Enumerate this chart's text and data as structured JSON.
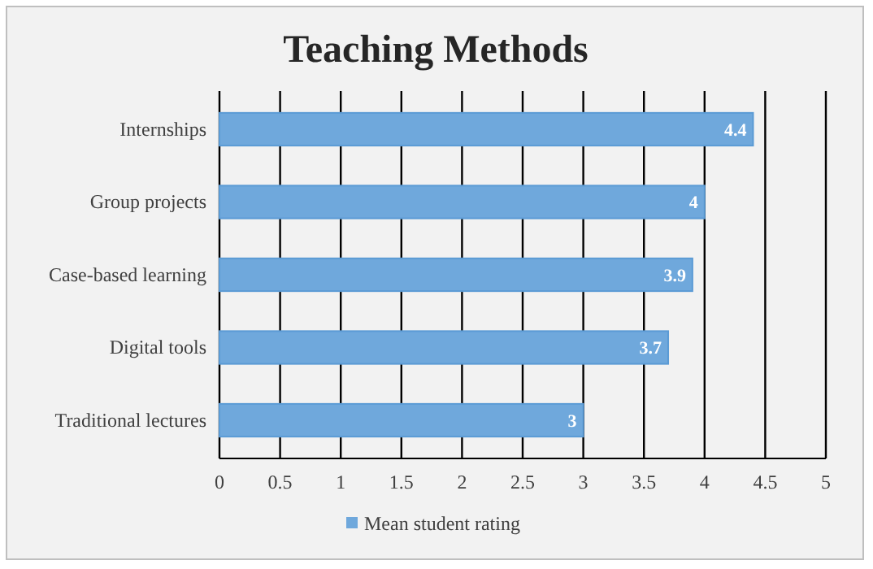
{
  "chart_data": {
    "type": "bar",
    "orientation": "horizontal",
    "title": "Teaching Methods",
    "categories": [
      "Internships",
      "Group projects",
      "Case-based learning",
      "Digital tools",
      "Traditional lectures"
    ],
    "series": [
      {
        "name": "Mean student rating",
        "color": "#6fa8dc",
        "values": [
          4.4,
          4,
          3.9,
          3.7,
          3
        ]
      }
    ],
    "xlim": [
      0,
      5
    ],
    "xticks": [
      0,
      0.5,
      1,
      1.5,
      2,
      2.5,
      3,
      3.5,
      4,
      4.5,
      5
    ],
    "grid": "x",
    "legend": "bottom",
    "data_labels": true
  }
}
